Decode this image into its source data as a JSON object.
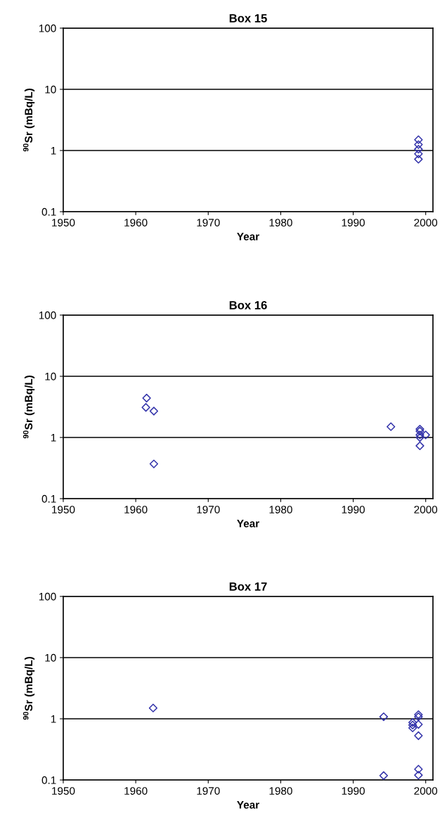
{
  "chart_data": [
    {
      "type": "scatter",
      "title": "Box 15",
      "xlabel": "Year",
      "ylabel": "$^{90}$Sr (mBq/L)",
      "log": "y",
      "grid": "y",
      "marker": "diamond",
      "xlim": [
        1950,
        2001
      ],
      "xticks": [
        1950,
        1960,
        1970,
        1980,
        1990,
        2000
      ],
      "ylim": [
        0.1,
        100
      ],
      "yticks": [
        0.1,
        1,
        10,
        100
      ],
      "series": [
        {
          "color": "#3333aa",
          "x": [
            1999.0,
            1999.0,
            1999.0,
            1999.0,
            1999.0
          ],
          "values": [
            1.5,
            1.25,
            1.05,
            0.88,
            0.72
          ]
        }
      ]
    },
    {
      "type": "scatter",
      "title": "Box 16",
      "xlabel": "Year",
      "ylabel": "$^{90}$Sr (mBq/L)",
      "log": "y",
      "grid": "y",
      "marker": "diamond",
      "xlim": [
        1950,
        2001
      ],
      "xticks": [
        1950,
        1960,
        1970,
        1980,
        1990,
        2000
      ],
      "ylim": [
        0.1,
        100
      ],
      "yticks": [
        0.1,
        1,
        10,
        100
      ],
      "series": [
        {
          "color": "#3333aa",
          "x": [
            1961.5,
            1961.4,
            1962.5,
            1962.5,
            1995.2,
            1999.2,
            1999.2,
            1999.2,
            1999.2,
            2000.0,
            1999.2
          ],
          "values": [
            4.4,
            3.1,
            2.7,
            0.37,
            1.5,
            1.37,
            1.27,
            1.1,
            1.0,
            1.1,
            0.73
          ]
        }
      ]
    },
    {
      "type": "scatter",
      "title": "Box 17",
      "xlabel": "Year",
      "ylabel": "$^{90}$Sr (mBq/L)",
      "log": "y",
      "grid": "y",
      "marker": "diamond",
      "xlim": [
        1950,
        2001
      ],
      "xticks": [
        1950,
        1960,
        1970,
        1980,
        1990,
        2000
      ],
      "ylim": [
        0.1,
        100
      ],
      "yticks": [
        0.1,
        1,
        10,
        100
      ],
      "series": [
        {
          "color": "#3333aa",
          "x": [
            1962.4,
            1994.2,
            1994.2,
            1998.2,
            1998.2,
            1998.2,
            1999.0,
            1999.0,
            1999.0,
            1999.0,
            1999.0,
            1999.0
          ],
          "values": [
            1.5,
            1.08,
            0.118,
            0.87,
            0.79,
            0.71,
            1.17,
            1.08,
            0.81,
            0.53,
            0.15,
            0.12
          ]
        }
      ]
    }
  ]
}
